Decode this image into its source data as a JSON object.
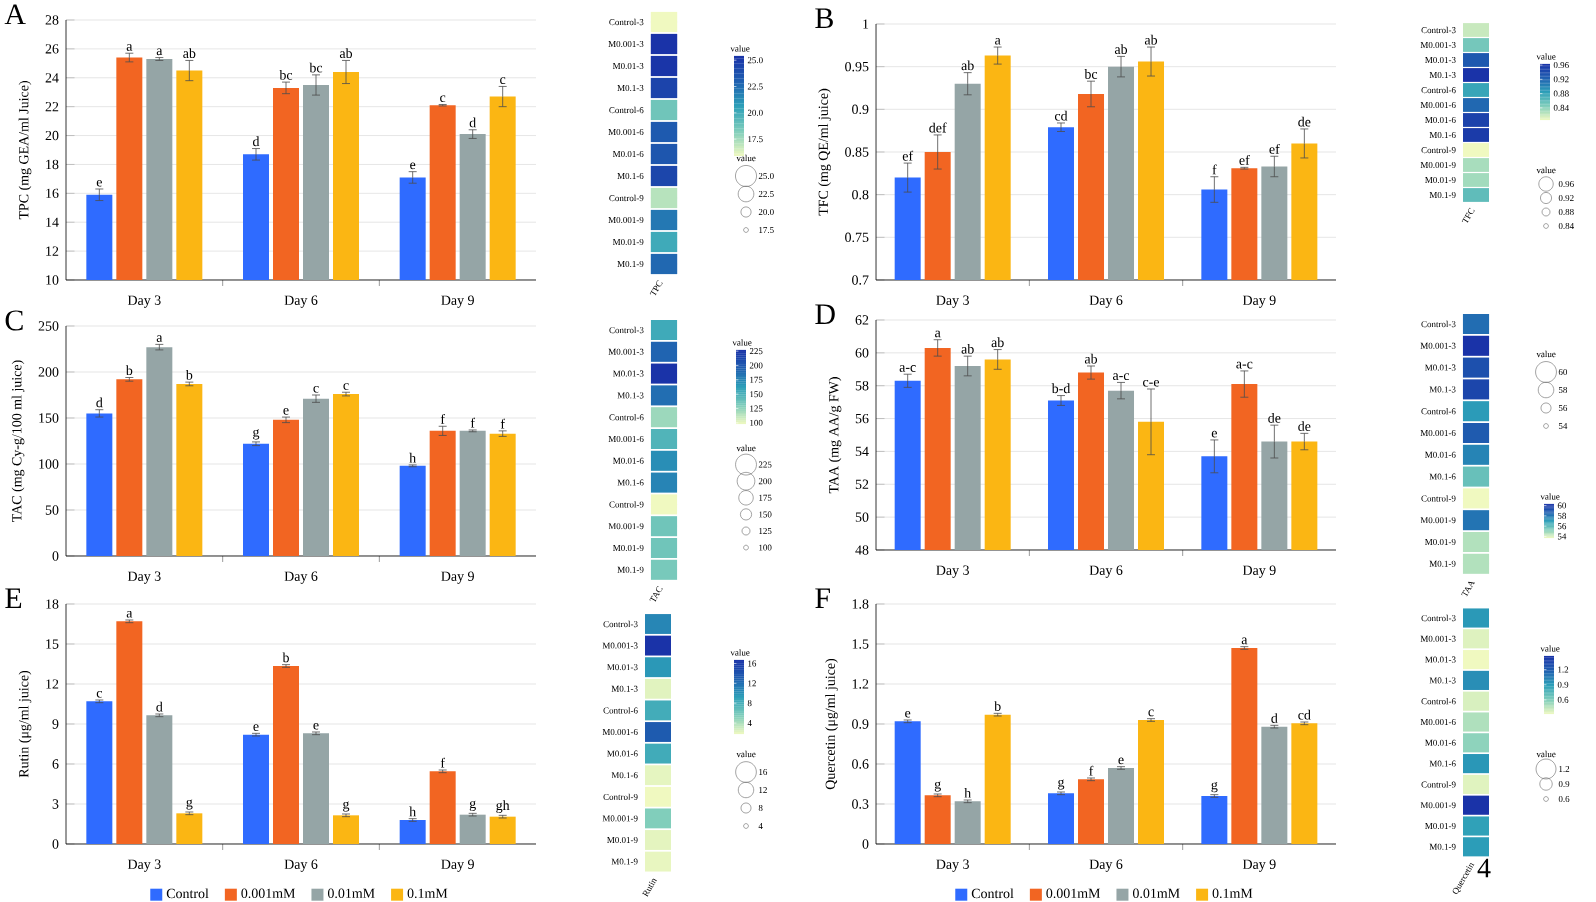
{
  "chart_data": [
    {
      "type": "bar",
      "title": "A",
      "ylabel": "TPC (mg GEA/ml Juice)",
      "categories": [
        "Day 3",
        "Day 6",
        "Day 9"
      ],
      "ylim": [
        10,
        28
      ],
      "yticks": [
        10,
        12,
        14,
        16,
        18,
        20,
        22,
        24,
        26,
        28
      ],
      "grid": "y",
      "series": [
        {
          "color": "#2f6bff",
          "values": [
            15.9,
            18.7,
            17.1
          ],
          "errors": [
            0.4,
            0.4,
            0.4
          ],
          "value_labels": [
            "e",
            "d",
            "e"
          ]
        },
        {
          "color": "#f26522",
          "values": [
            25.4,
            23.3,
            22.1
          ],
          "errors": [
            0.3,
            0.4,
            0.05
          ],
          "value_labels": [
            "a",
            "bc",
            "c"
          ]
        },
        {
          "color": "#95a5a6",
          "values": [
            25.3,
            23.5,
            20.1
          ],
          "errors": [
            0.1,
            0.7,
            0.3
          ],
          "value_labels": [
            "a",
            "bc",
            "d"
          ]
        },
        {
          "color": "#fbb613",
          "values": [
            24.5,
            24.4,
            22.7
          ],
          "errors": [
            0.7,
            0.8,
            0.7
          ],
          "value_labels": [
            "ab",
            "ab",
            "c"
          ]
        }
      ]
    },
    {
      "type": "heatmap",
      "categories": [
        "TPC"
      ],
      "y_categories": [
        "Control-3",
        "M0.001-3",
        "M0.01-3",
        "M0.1-3",
        "Control-6",
        "M0.001-6",
        "M0.01-6",
        "M0.1-6",
        "Control-9",
        "M0.001-9",
        "M0.01-9",
        "M0.1-9"
      ],
      "cells": [
        [
          15.9
        ],
        [
          25.4
        ],
        [
          25.3
        ],
        [
          24.5
        ],
        [
          18.7
        ],
        [
          23.3
        ],
        [
          23.5
        ],
        [
          24.4
        ],
        [
          17.1
        ],
        [
          22.1
        ],
        [
          20.1
        ],
        [
          22.7
        ]
      ],
      "clim": [
        15.9,
        25.4
      ],
      "clabel": "value",
      "cticks": [
        17.5,
        {
          "value": 20,
          "label": "20.0"
        },
        22.5,
        {
          "value": 25,
          "label": "25.0"
        }
      ],
      "annotations": [
        "value",
        "25.0",
        "22.5",
        "20.0",
        "17.5"
      ],
      "grid": "y"
    },
    {
      "type": "bar",
      "title": "B",
      "ylabel": "TFC (mg QE/ml juice)",
      "categories": [
        "Day 3",
        "Day 6",
        "Day 9"
      ],
      "ylim": [
        0.7,
        1
      ],
      "yticks": [
        0.7,
        0.75,
        0.8,
        0.85,
        0.9,
        0.95,
        1
      ],
      "grid": "y",
      "series": [
        {
          "color": "#2f6bff",
          "values": [
            0.82,
            0.879,
            0.806
          ],
          "errors": [
            0.017,
            0.005,
            0.015
          ],
          "value_labels": [
            "ef",
            "cd",
            "f"
          ]
        },
        {
          "color": "#f26522",
          "values": [
            0.85,
            0.918,
            0.831
          ],
          "errors": [
            0.02,
            0.015,
            0.001
          ],
          "value_labels": [
            "def",
            "bc",
            "ef"
          ]
        },
        {
          "color": "#95a5a6",
          "values": [
            0.93,
            0.95,
            0.833
          ],
          "errors": [
            0.013,
            0.012,
            0.012
          ],
          "value_labels": [
            "ab",
            "ab",
            "ef"
          ]
        },
        {
          "color": "#fbb613",
          "values": [
            0.963,
            0.956,
            0.86
          ],
          "errors": [
            0.01,
            0.017,
            0.017
          ],
          "value_labels": [
            "a",
            "ab",
            "de"
          ]
        }
      ]
    },
    {
      "type": "heatmap",
      "categories": [
        "TFC"
      ],
      "y_categories": [
        "Control-3",
        "M0.001-3",
        "M0.01-3",
        "M0.1-3",
        "Control-6",
        "M0.001-6",
        "M0.01-6",
        "M0.1-6",
        "Control-9",
        "M0.001-9",
        "M0.01-9",
        "M0.1-9"
      ],
      "cells": [
        [
          0.82
        ],
        [
          0.85
        ],
        [
          0.93
        ],
        [
          0.963
        ],
        [
          0.879
        ],
        [
          0.918
        ],
        [
          0.95
        ],
        [
          0.956
        ],
        [
          0.806
        ],
        [
          0.831
        ],
        [
          0.833
        ],
        [
          0.86
        ]
      ],
      "clim": [
        0.806,
        0.963
      ],
      "clabel": "value",
      "cticks": [
        0.84,
        0.88,
        0.92,
        0.96
      ],
      "annotations": [
        "value",
        "0.96",
        "0.92",
        "0.88",
        "0.84"
      ],
      "grid": "y"
    },
    {
      "type": "bar",
      "title": "C",
      "ylabel": "TAC (mg Cy-g/100 ml juice)",
      "categories": [
        "Day 3",
        "Day 6",
        "Day 9"
      ],
      "ylim": [
        0,
        250
      ],
      "yticks": [
        0,
        50,
        100,
        150,
        200,
        250
      ],
      "grid": "y",
      "series": [
        {
          "color": "#2f6bff",
          "values": [
            155,
            122,
            98
          ],
          "errors": [
            4,
            2,
            1
          ],
          "value_labels": [
            "d",
            "g",
            "h"
          ]
        },
        {
          "color": "#f26522",
          "values": [
            192,
            148,
            136
          ],
          "errors": [
            2,
            3,
            5
          ],
          "value_labels": [
            "b",
            "e",
            "f"
          ]
        },
        {
          "color": "#95a5a6",
          "values": [
            227,
            171,
            136
          ],
          "errors": [
            3,
            4,
            1
          ],
          "value_labels": [
            "a",
            "c",
            "f"
          ]
        },
        {
          "color": "#fbb613",
          "values": [
            187,
            176,
            133
          ],
          "errors": [
            2,
            2,
            3
          ],
          "value_labels": [
            "b",
            "c",
            "f"
          ]
        }
      ]
    },
    {
      "type": "heatmap",
      "categories": [
        "TAC"
      ],
      "y_categories": [
        "Control-3",
        "M0.001-3",
        "M0.01-3",
        "M0.1-3",
        "Control-6",
        "M0.001-6",
        "M0.01-6",
        "M0.1-6",
        "Control-9",
        "M0.001-9",
        "M0.01-9",
        "M0.1-9"
      ],
      "cells": [
        [
          155
        ],
        [
          192
        ],
        [
          227
        ],
        [
          187
        ],
        [
          122
        ],
        [
          148
        ],
        [
          171
        ],
        [
          176
        ],
        [
          98
        ],
        [
          136
        ],
        [
          136
        ],
        [
          133
        ]
      ],
      "clim": [
        98,
        227
      ],
      "clabel": "value",
      "cticks": [
        100,
        125,
        150,
        175,
        200,
        225
      ],
      "annotations": [
        "value",
        "225",
        "200",
        "175",
        "150",
        "125",
        "100"
      ],
      "grid": "y"
    },
    {
      "type": "bar",
      "title": "D",
      "ylabel": "TAA (mg AA/g FW)",
      "categories": [
        "Day 3",
        "Day 6",
        "Day 9"
      ],
      "ylim": [
        48,
        62
      ],
      "yticks": [
        48,
        50,
        52,
        54,
        56,
        58,
        60,
        62
      ],
      "grid": "y",
      "series": [
        {
          "color": "#2f6bff",
          "values": [
            58.3,
            57.1,
            53.7
          ],
          "errors": [
            0.4,
            0.3,
            1.0
          ],
          "value_labels": [
            "a-c",
            "b-d",
            "e"
          ]
        },
        {
          "color": "#f26522",
          "values": [
            60.3,
            58.8,
            58.1
          ],
          "errors": [
            0.5,
            0.4,
            0.8
          ],
          "value_labels": [
            "a",
            "ab",
            "a-c"
          ]
        },
        {
          "color": "#95a5a6",
          "values": [
            59.2,
            57.7,
            54.6
          ],
          "errors": [
            0.6,
            0.5,
            1.0
          ],
          "value_labels": [
            "ab",
            "a-c",
            "de"
          ]
        },
        {
          "color": "#fbb613",
          "values": [
            59.6,
            55.8,
            54.6
          ],
          "errors": [
            0.6,
            2.0,
            0.5
          ],
          "value_labels": [
            "ab",
            "c-e",
            "de"
          ]
        }
      ]
    },
    {
      "type": "heatmap",
      "categories": [
        "TAA"
      ],
      "y_categories": [
        "Control-3",
        "M0.001-3",
        "M0.01-3",
        "M0.1-3",
        "Control-6",
        "M0.001-6",
        "M0.01-6",
        "M0.1-6",
        "Control-9",
        "M0.001-9",
        "M0.01-9",
        "M0.1-9"
      ],
      "cells": [
        [
          58.3
        ],
        [
          60.3
        ],
        [
          59.2
        ],
        [
          59.6
        ],
        [
          57.1
        ],
        [
          58.8
        ],
        [
          57.7
        ],
        [
          55.8
        ],
        [
          53.7
        ],
        [
          58.1
        ],
        [
          54.6
        ],
        [
          54.6
        ]
      ],
      "clim": [
        53.7,
        60.3
      ],
      "clabel": "value",
      "cticks": [
        54,
        56,
        58,
        60
      ],
      "annotations": [
        "value",
        "60",
        "58",
        "56",
        "54"
      ],
      "grid": "y"
    },
    {
      "type": "bar",
      "title": "E",
      "ylabel": "Rutin (μg/ml juice)",
      "categories": [
        "Day 3",
        "Day 6",
        "Day 9"
      ],
      "ylim": [
        0,
        18
      ],
      "yticks": [
        0,
        3,
        6,
        9,
        12,
        15,
        18
      ],
      "grid": "y",
      "legend": "bottom",
      "series": [
        {
          "name": "Control",
          "color": "#2f6bff",
          "values": [
            10.7,
            8.2,
            1.8
          ],
          "errors": [
            0.1,
            0.1,
            0.1
          ],
          "value_labels": [
            "c",
            "e",
            "h"
          ]
        },
        {
          "name": "0.001mM",
          "color": "#f26522",
          "values": [
            16.7,
            13.35,
            5.45
          ],
          "errors": [
            0.1,
            0.1,
            0.1
          ],
          "value_labels": [
            "a",
            "b",
            "f"
          ]
        },
        {
          "name": "0.01mM",
          "color": "#95a5a6",
          "values": [
            9.65,
            8.3,
            2.2
          ],
          "errors": [
            0.1,
            0.1,
            0.1
          ],
          "value_labels": [
            "d",
            "e",
            "g"
          ]
        },
        {
          "name": "0.1mM",
          "color": "#fbb613",
          "values": [
            2.3,
            2.15,
            2.05
          ],
          "errors": [
            0.1,
            0.1,
            0.1
          ],
          "value_labels": [
            "g",
            "g",
            "gh"
          ]
        }
      ]
    },
    {
      "type": "heatmap",
      "categories": [
        "Rutin"
      ],
      "y_categories": [
        "Control-3",
        "M0.001-3",
        "M0.01-3",
        "M0.1-3",
        "Control-6",
        "M0.001-6",
        "M0.01-6",
        "M0.1-6",
        "Control-9",
        "M0.001-9",
        "M0.01-9",
        "M0.1-9"
      ],
      "cells": [
        [
          10.7
        ],
        [
          16.7
        ],
        [
          9.65
        ],
        [
          2.3
        ],
        [
          8.2
        ],
        [
          13.35
        ],
        [
          8.3
        ],
        [
          2.15
        ],
        [
          1.8
        ],
        [
          5.45
        ],
        [
          2.2
        ],
        [
          2.05
        ]
      ],
      "clim": [
        1.8,
        16.7
      ],
      "clabel": "value",
      "cticks": [
        4,
        8,
        12,
        16
      ],
      "annotations": [
        "value",
        "16",
        "12",
        "8",
        "4"
      ],
      "grid": "y"
    },
    {
      "type": "bar",
      "title": "F",
      "ylabel": "Quercetin (μg/ml juice)",
      "categories": [
        "Day 3",
        "Day 6",
        "Day 9"
      ],
      "ylim": [
        0,
        1.8
      ],
      "yticks": [
        0,
        0.3,
        0.6,
        0.9,
        1.2,
        1.5,
        1.8
      ],
      "grid": "y",
      "legend": "bottom",
      "series": [
        {
          "name": "Control",
          "color": "#2f6bff",
          "values": [
            0.92,
            0.38,
            0.36
          ],
          "errors": [
            0.01,
            0.01,
            0.01
          ],
          "value_labels": [
            "e",
            "g",
            "g"
          ]
        },
        {
          "name": "0.001mM",
          "color": "#f26522",
          "values": [
            0.365,
            0.485,
            1.47
          ],
          "errors": [
            0.01,
            0.01,
            0.01
          ],
          "value_labels": [
            "g",
            "f",
            "a"
          ]
        },
        {
          "name": "0.01mM",
          "color": "#95a5a6",
          "values": [
            0.32,
            0.57,
            0.88
          ],
          "errors": [
            0.01,
            0.01,
            0.01
          ],
          "value_labels": [
            "h",
            "e",
            "d"
          ]
        },
        {
          "name": "0.1mM",
          "color": "#fbb613",
          "values": [
            0.97,
            0.93,
            0.905
          ],
          "errors": [
            0.01,
            0.01,
            0.01
          ],
          "value_labels": [
            "b",
            "c",
            "cd"
          ]
        }
      ]
    },
    {
      "type": "heatmap",
      "categories": [
        "Quercetin"
      ],
      "y_categories": [
        "Control-3",
        "M0.001-3",
        "M0.01-3",
        "M0.1-3",
        "Control-6",
        "M0.001-6",
        "M0.01-6",
        "M0.1-6",
        "Control-9",
        "M0.001-9",
        "M0.01-9",
        "M0.1-9"
      ],
      "cells": [
        [
          0.92
        ],
        [
          0.365
        ],
        [
          0.32
        ],
        [
          0.97
        ],
        [
          0.38
        ],
        [
          0.485
        ],
        [
          0.57
        ],
        [
          0.93
        ],
        [
          0.36
        ],
        [
          1.47
        ],
        [
          0.88
        ],
        [
          0.905
        ]
      ],
      "clim": [
        0.32,
        1.47
      ],
      "clabel": "value",
      "cticks": [
        0.6,
        0.9,
        1.2
      ],
      "annotations": [
        "value",
        "1.2",
        "0.9",
        "0.6",
        "4"
      ],
      "grid": "y"
    }
  ]
}
